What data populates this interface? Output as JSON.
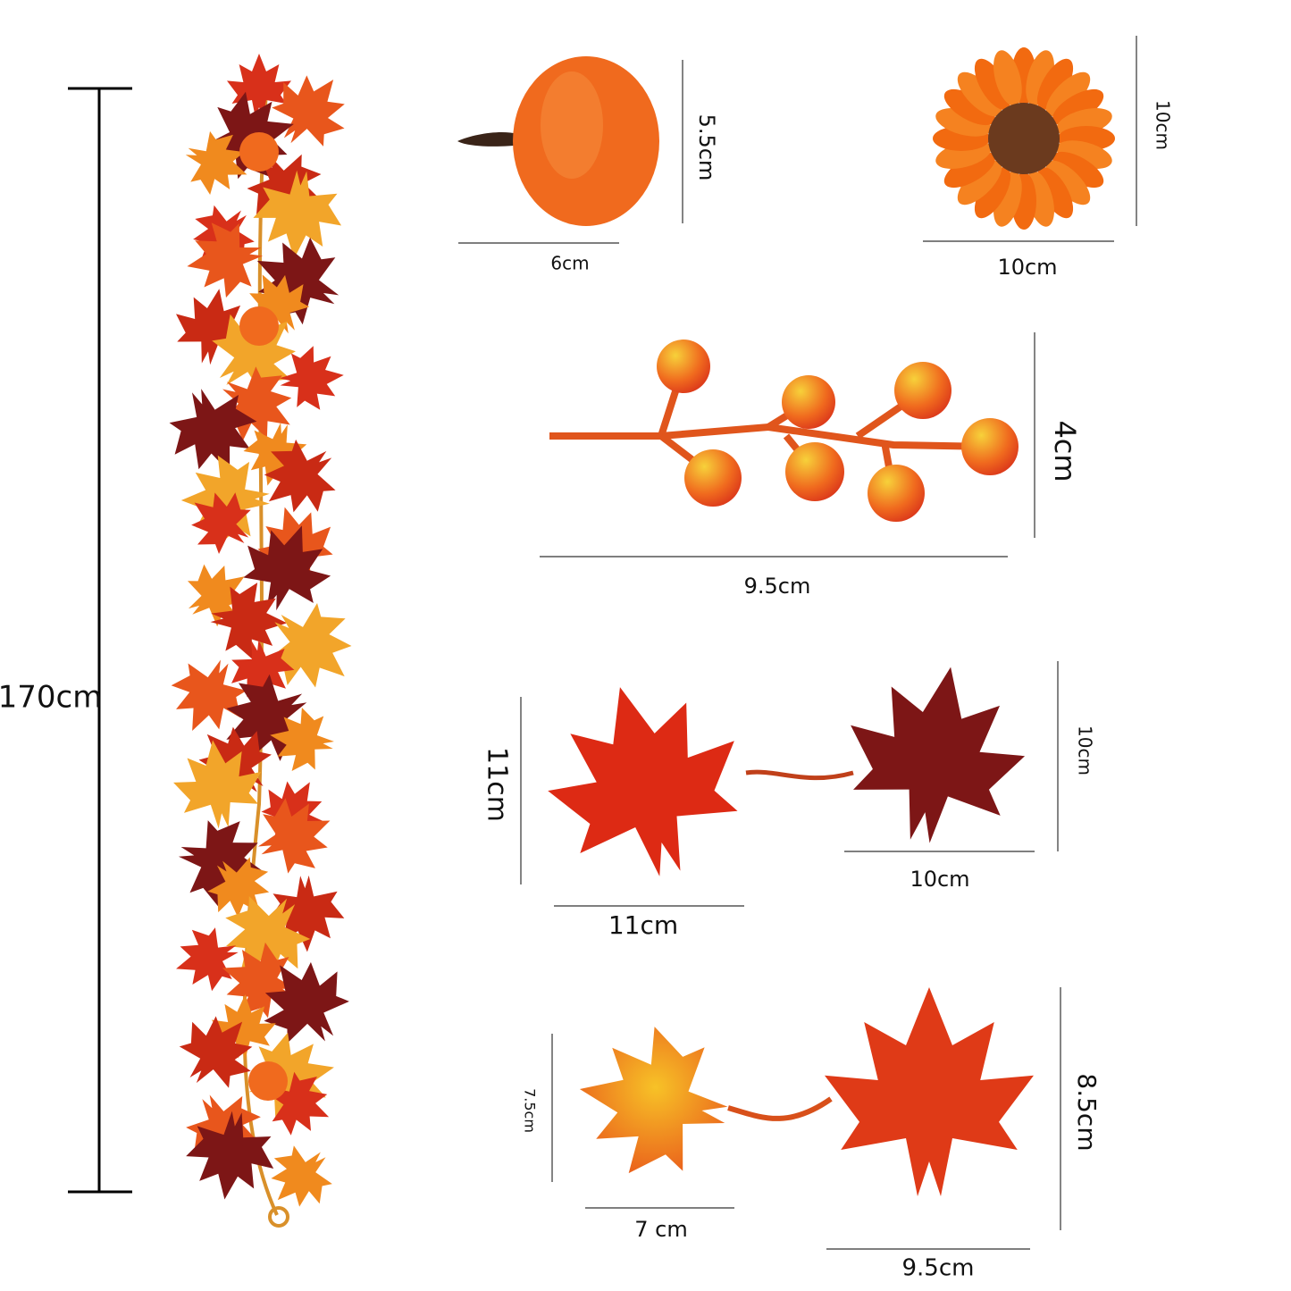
{
  "garland": {
    "length": "170cm"
  },
  "items": [
    {
      "width": "6cm",
      "height": "5.5cm"
    },
    {
      "width": "10cm",
      "height": "10cm"
    },
    {
      "width": "9.5cm",
      "height": "4cm"
    },
    {
      "width": "11cm",
      "height": "11cm"
    },
    {
      "width": "10cm",
      "height": "10cm"
    },
    {
      "width": "7 cm",
      "height": "7.5cm"
    },
    {
      "width": "9.5cm",
      "height": "8.5cm"
    }
  ]
}
